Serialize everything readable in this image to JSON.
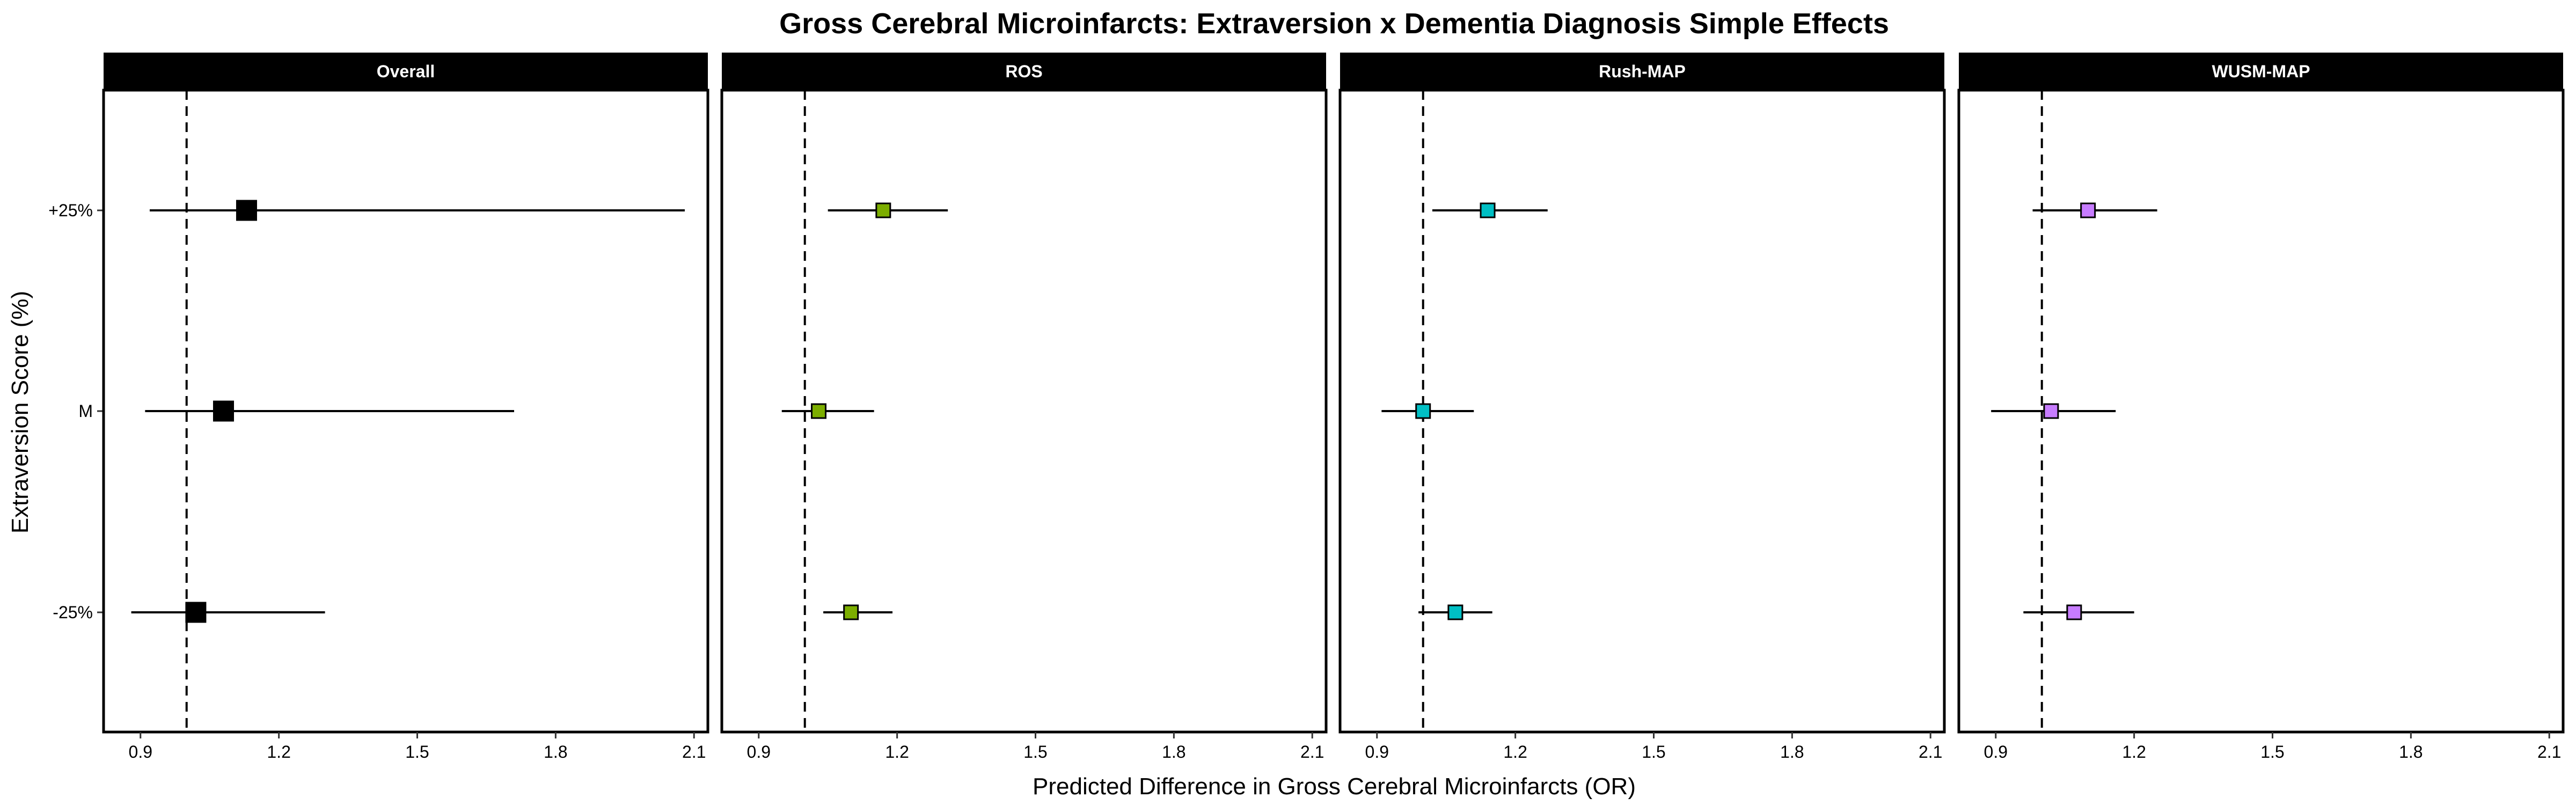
{
  "chart_data": {
    "type": "forest",
    "title": "Gross Cerebral Microinfarcts: Extraversion x Dementia Diagnosis Simple Effects",
    "xlabel": "Predicted Difference in Gross Cerebral Microinfarcts (OR)",
    "ylabel": "Extraversion Score (%)",
    "xlim": [
      0.82,
      2.13
    ],
    "x_ticks": [
      0.9,
      1.2,
      1.5,
      1.8,
      2.1
    ],
    "x_tick_labels": [
      "0.9",
      "1.2",
      "1.5",
      "1.8",
      "2.1"
    ],
    "y_categories": [
      "+25%",
      "M",
      "-25%"
    ],
    "reference_line": 1.0,
    "grid": false,
    "panels": [
      {
        "name": "Overall",
        "color": "#000000",
        "points": [
          {
            "level": "+25%",
            "estimate": 1.13,
            "lower": 0.92,
            "upper": 2.08
          },
          {
            "level": "M",
            "estimate": 1.08,
            "lower": 0.91,
            "upper": 1.71
          },
          {
            "level": "-25%",
            "estimate": 1.02,
            "lower": 0.88,
            "upper": 1.3
          }
        ]
      },
      {
        "name": "ROS",
        "color": "#7CAE00",
        "points": [
          {
            "level": "+25%",
            "estimate": 1.17,
            "lower": 1.05,
            "upper": 1.31
          },
          {
            "level": "M",
            "estimate": 1.03,
            "lower": 0.95,
            "upper": 1.15
          },
          {
            "level": "-25%",
            "estimate": 1.1,
            "lower": 1.04,
            "upper": 1.19
          }
        ]
      },
      {
        "name": "Rush-MAP",
        "color": "#00BFC4",
        "points": [
          {
            "level": "+25%",
            "estimate": 1.14,
            "lower": 1.02,
            "upper": 1.27
          },
          {
            "level": "M",
            "estimate": 1.0,
            "lower": 0.91,
            "upper": 1.11
          },
          {
            "level": "-25%",
            "estimate": 1.07,
            "lower": 0.99,
            "upper": 1.15
          }
        ]
      },
      {
        "name": "WUSM-MAP",
        "color": "#C77CFF",
        "points": [
          {
            "level": "+25%",
            "estimate": 1.1,
            "lower": 0.98,
            "upper": 1.25
          },
          {
            "level": "M",
            "estimate": 1.02,
            "lower": 0.89,
            "upper": 1.16
          },
          {
            "level": "-25%",
            "estimate": 1.07,
            "lower": 0.96,
            "upper": 1.2
          }
        ]
      }
    ]
  }
}
